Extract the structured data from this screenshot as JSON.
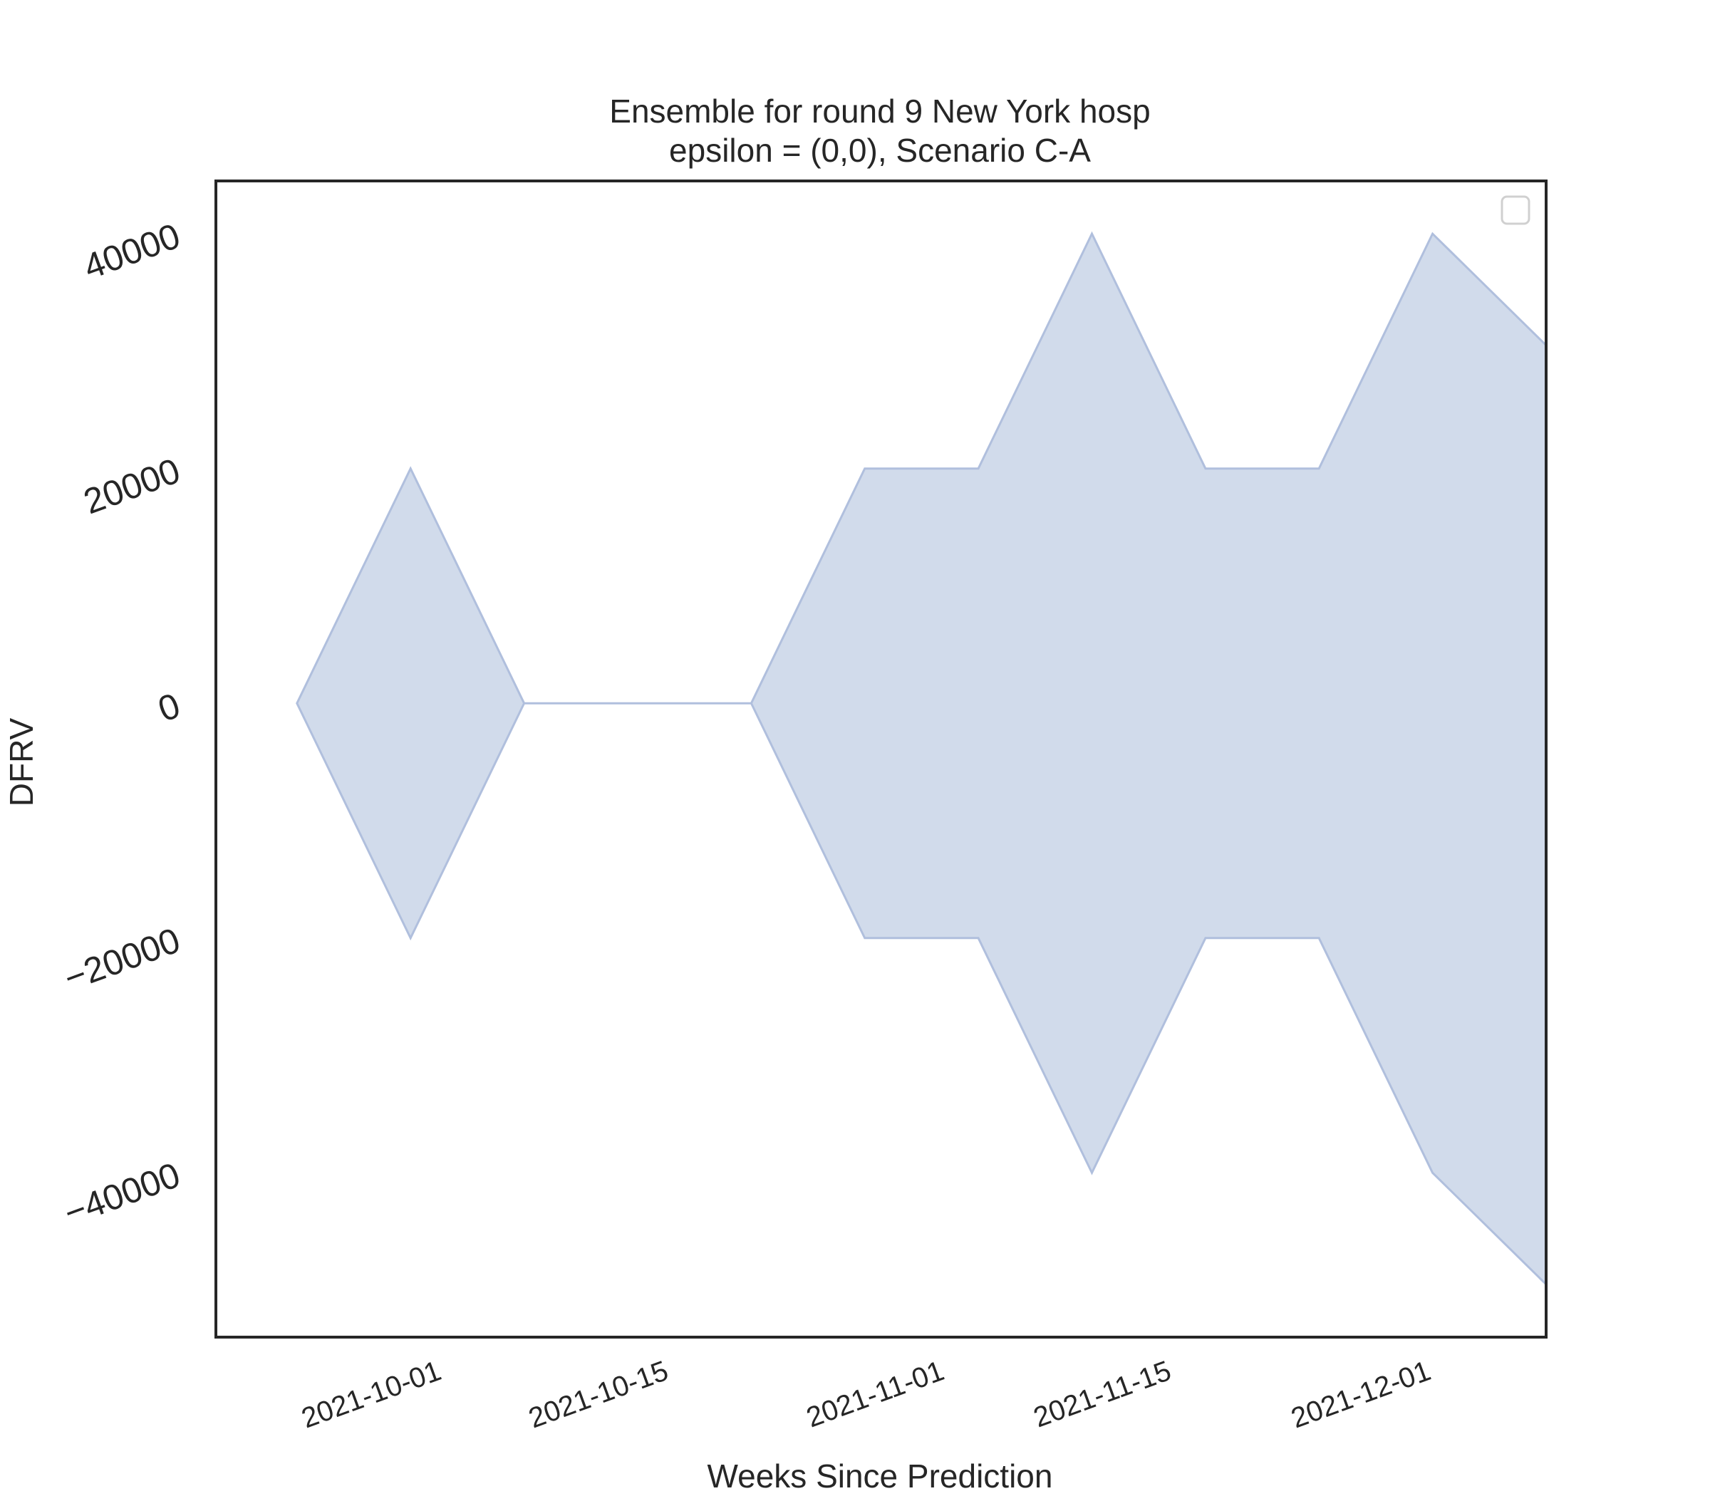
{
  "chart_data": {
    "type": "area",
    "title": "Ensemble for round 9 New York hosp",
    "subtitle": "epsilon = (0,0), Scenario C-A",
    "xlabel": "Weeks Since Prediction",
    "ylabel": "DFRV",
    "x_type": "date",
    "xlim": [
      "2021-09-17",
      "2021-12-08"
    ],
    "ylim": [
      -54000,
      44500
    ],
    "x_ticks": [
      "2021-10-01",
      "2021-10-15",
      "2021-11-01",
      "2021-11-15",
      "2021-12-01"
    ],
    "y_ticks": [
      -40000,
      -20000,
      0,
      20000,
      40000
    ],
    "y_tick_labels": [
      "−40000",
      "−20000",
      "0",
      "20000",
      "40000"
    ],
    "grid": false,
    "legend": {
      "placement": "top-right",
      "entries": []
    },
    "fill_color": "#b8c7e1",
    "edge_color": "#b0bfdd",
    "series": [
      {
        "x": [
          "2021-09-22",
          "2021-09-29",
          "2021-10-06",
          "2021-10-13",
          "2021-10-20",
          "2021-10-27",
          "2021-11-03",
          "2021-11-10",
          "2021-11-17",
          "2021-11-24",
          "2021-12-01",
          "2021-12-08"
        ],
        "upper": [
          0,
          20000,
          0,
          0,
          0,
          20000,
          20000,
          40000,
          20000,
          20000,
          40000,
          30500
        ],
        "lower": [
          0,
          -20000,
          0,
          0,
          0,
          -20000,
          -20000,
          -40000,
          -20000,
          -20000,
          -40000,
          -49500
        ]
      }
    ]
  }
}
